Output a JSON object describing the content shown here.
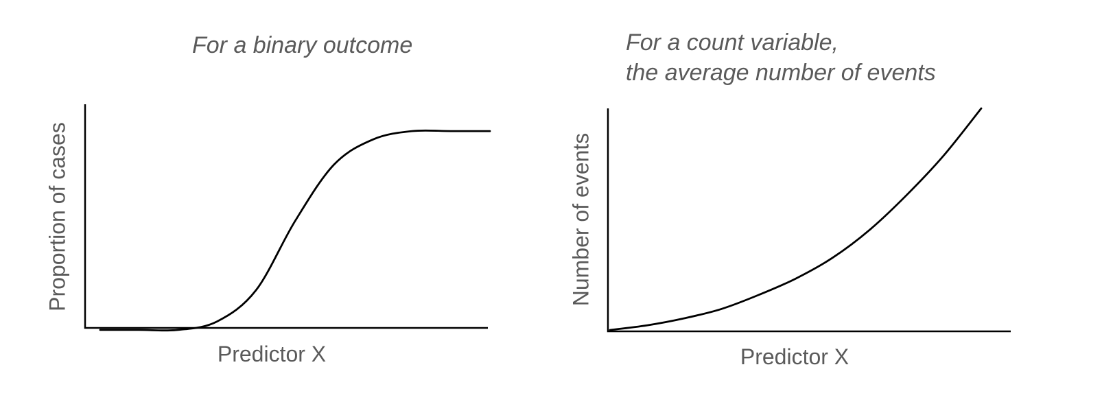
{
  "chart_data": [
    {
      "type": "line",
      "title": "For a binary outcome",
      "xlabel": "Predictor X",
      "ylabel": "Proportion of cases",
      "shape": "logistic (S-shaped)",
      "x": [
        0,
        1,
        2,
        3,
        4,
        5,
        6,
        7,
        8,
        9,
        10
      ],
      "y": [
        0.03,
        0.03,
        0.03,
        0.07,
        0.22,
        0.55,
        0.82,
        0.94,
        0.98,
        0.98,
        0.98
      ],
      "xlim": [
        0,
        10
      ],
      "ylim": [
        0,
        1
      ],
      "ticks": false,
      "grid": false
    },
    {
      "type": "line",
      "title_lines": [
        "For a count variable,",
        "the average number of events"
      ],
      "xlabel": "Predictor X",
      "ylabel": "Number of events",
      "shape": "exponential",
      "x": [
        0,
        1,
        2,
        3,
        4,
        5,
        6,
        7,
        8,
        9,
        10
      ],
      "y": [
        0.0,
        0.02,
        0.05,
        0.09,
        0.15,
        0.22,
        0.31,
        0.43,
        0.58,
        0.75,
        0.95
      ],
      "xlim": [
        0,
        10
      ],
      "ylim": [
        0,
        1
      ],
      "ticks": false,
      "grid": false
    }
  ]
}
